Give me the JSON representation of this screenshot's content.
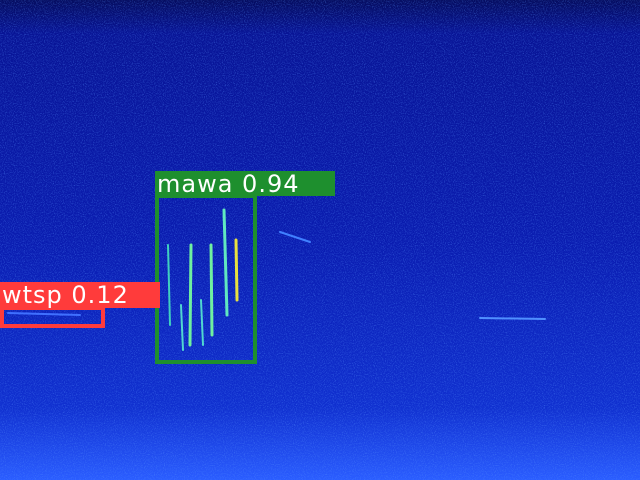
{
  "detections": [
    {
      "label": "mawa",
      "score": "0.94",
      "text": "mawa 0.94",
      "color": "#1e8f2e"
    },
    {
      "label": "wtsp",
      "score": "0.12",
      "text": "wtsp 0.12",
      "color": "#ff3b3b"
    }
  ],
  "colors": {
    "background": "#0a1aa8",
    "top_band": "#050f6a",
    "bottom": "#2a5cff"
  }
}
